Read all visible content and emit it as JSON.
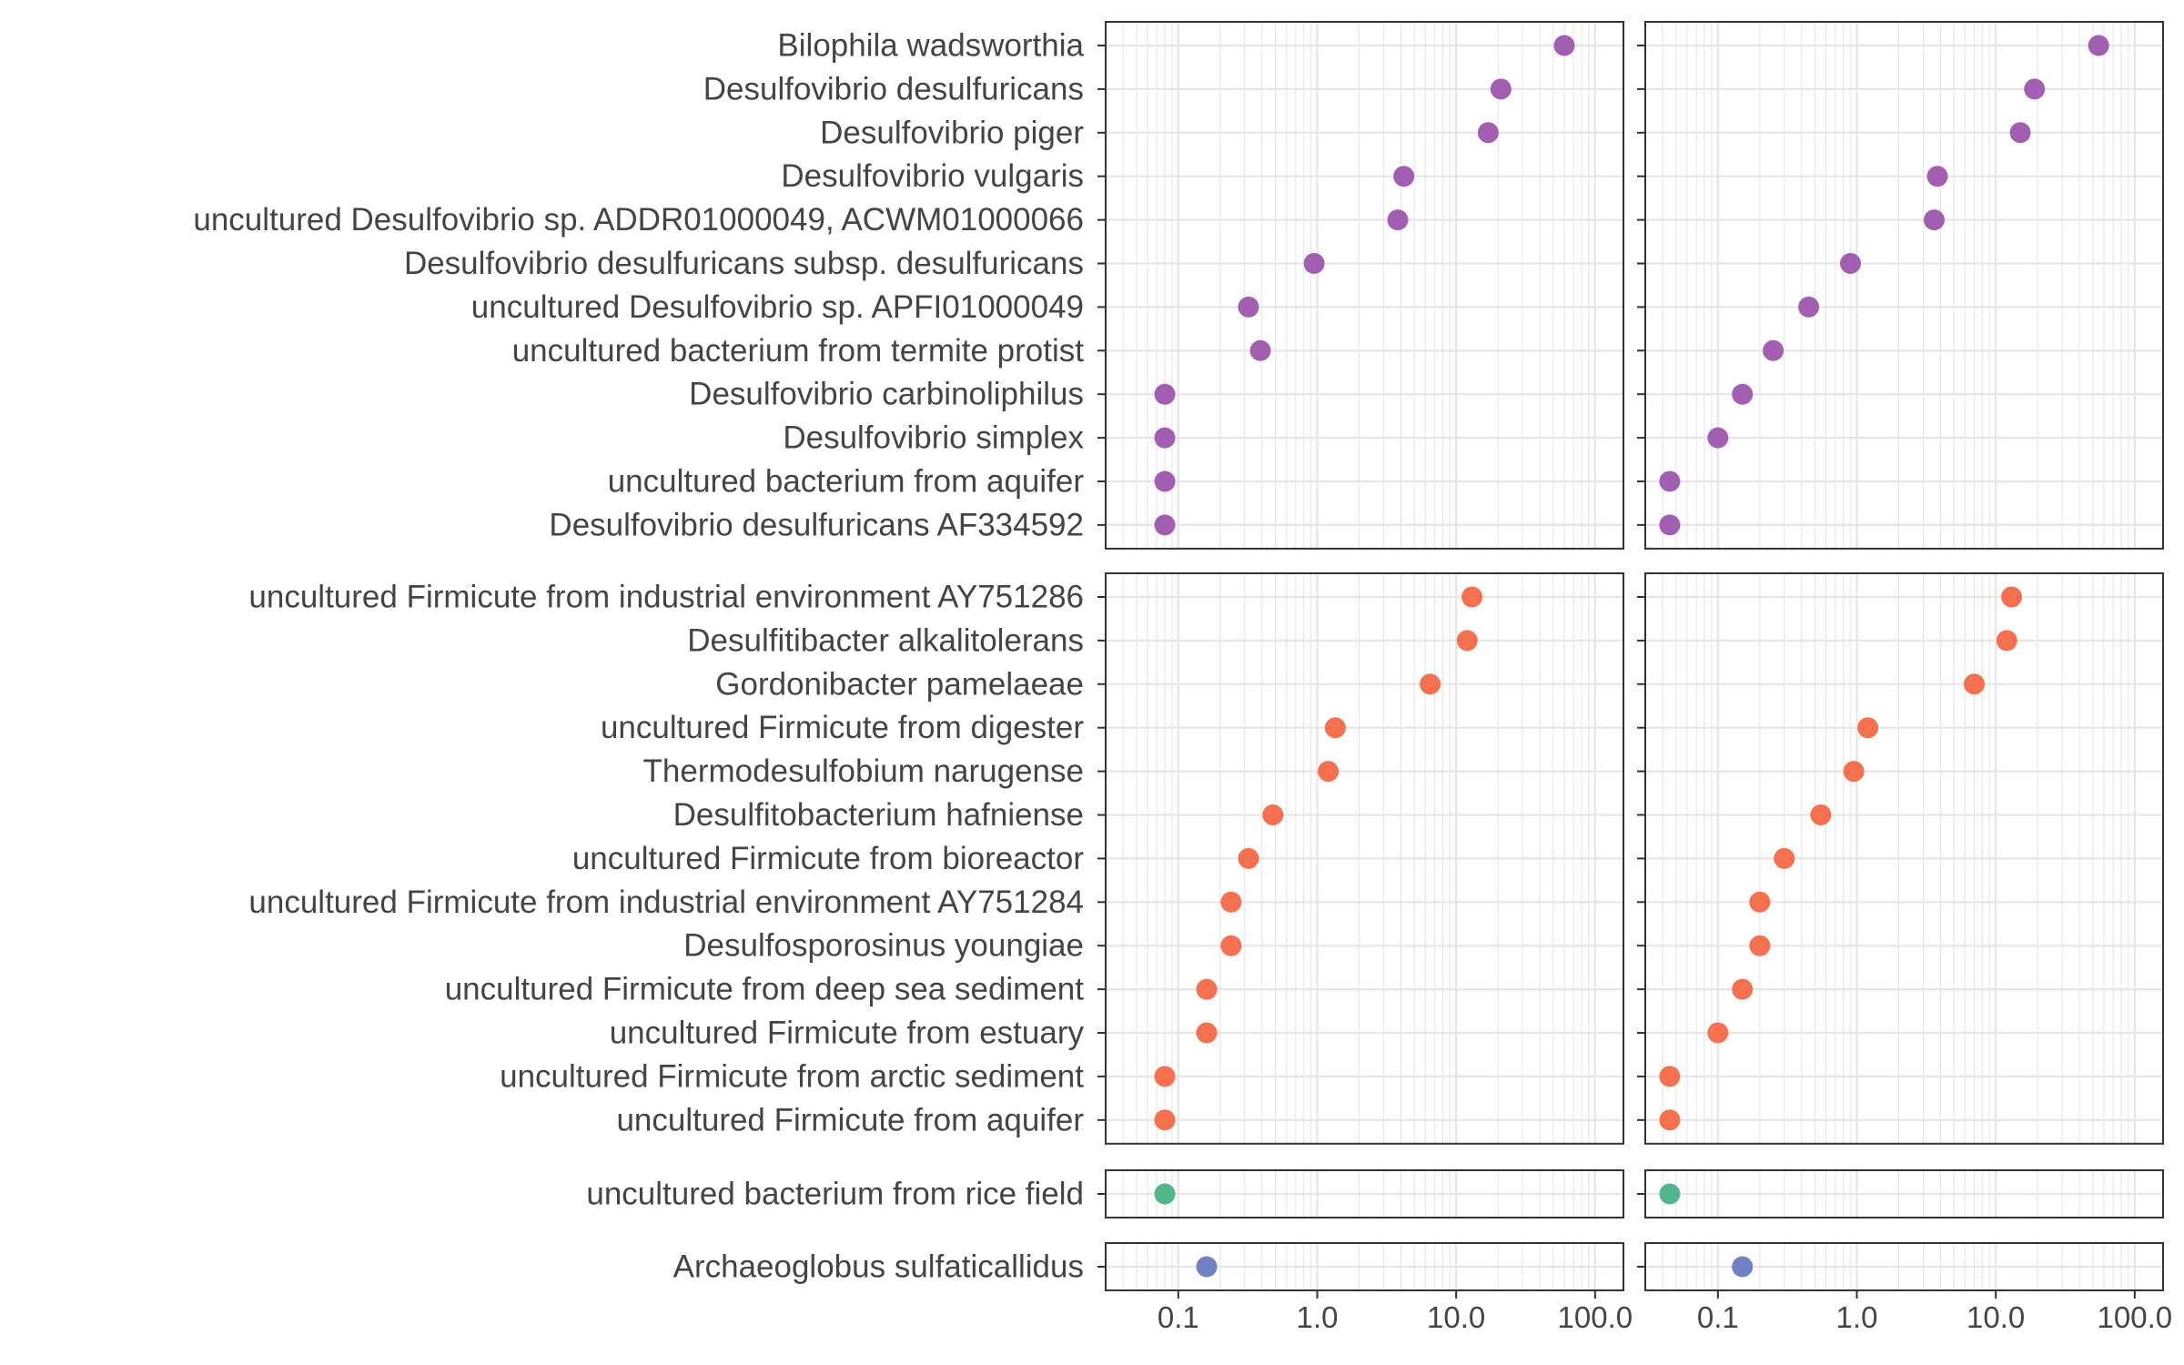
{
  "chart_data": {
    "type": "scatter",
    "x_scale": "log",
    "xlim": [
      0.03,
      160
    ],
    "x_ticks": [
      0.1,
      1.0,
      10.0,
      100.0
    ],
    "x_tick_labels": [
      "0.1",
      "1.0",
      "10.0",
      "100.0"
    ],
    "grid": true,
    "legend": "none",
    "groups": [
      {
        "color": "#a25fb1",
        "categories": [
          "Bilophila wadsworthia",
          "Desulfovibrio desulfuricans",
          "Desulfovibrio piger",
          "Desulfovibrio vulgaris",
          "uncultured Desulfovibrio sp. ADDR01000049, ACWM01000066",
          "Desulfovibrio desulfuricans subsp. desulfuricans",
          "uncultured Desulfovibrio sp. APFI01000049",
          "uncultured bacterium from termite protist",
          "Desulfovibrio carbinoliphilus",
          "Desulfovibrio simplex",
          "uncultured bacterium from aquifer",
          "Desulfovibrio desulfuricans AF334592"
        ],
        "left_values": [
          60,
          21,
          17,
          4.2,
          3.8,
          0.95,
          0.32,
          0.39,
          0.08,
          0.08,
          0.08,
          0.08
        ],
        "right_values": [
          55,
          19,
          15,
          3.8,
          3.6,
          0.9,
          0.45,
          0.25,
          0.15,
          0.1,
          0.045,
          0.045
        ]
      },
      {
        "color": "#f4704f",
        "categories": [
          "uncultured Firmicute from industrial environment AY751286",
          "Desulfitibacter alkalitolerans",
          "Gordonibacter pamelaeae",
          "uncultured Firmicute from digester",
          "Thermodesulfobium narugense",
          "Desulfitobacterium hafniense",
          "uncultured Firmicute from bioreactor",
          "uncultured Firmicute from industrial environment AY751284",
          "Desulfosporosinus youngiae",
          "uncultured Firmicute from deep sea sediment",
          "uncultured Firmicute from estuary",
          "uncultured Firmicute from arctic sediment",
          "uncultured Firmicute from aquifer"
        ],
        "left_values": [
          13,
          12,
          6.5,
          1.35,
          1.2,
          0.48,
          0.32,
          0.24,
          0.24,
          0.16,
          0.16,
          0.08,
          0.08
        ],
        "right_values": [
          13,
          12,
          7,
          1.2,
          0.95,
          0.55,
          0.3,
          0.2,
          0.2,
          0.15,
          0.1,
          0.045,
          0.045
        ]
      },
      {
        "color": "#52b68c",
        "categories": [
          "uncultured bacterium from rice field"
        ],
        "left_values": [
          0.08
        ],
        "right_values": [
          0.045
        ]
      },
      {
        "color": "#7082c2",
        "categories": [
          "Archaeoglobus sulfaticallidus"
        ],
        "left_values": [
          0.16
        ],
        "right_values": [
          0.15
        ]
      }
    ]
  }
}
